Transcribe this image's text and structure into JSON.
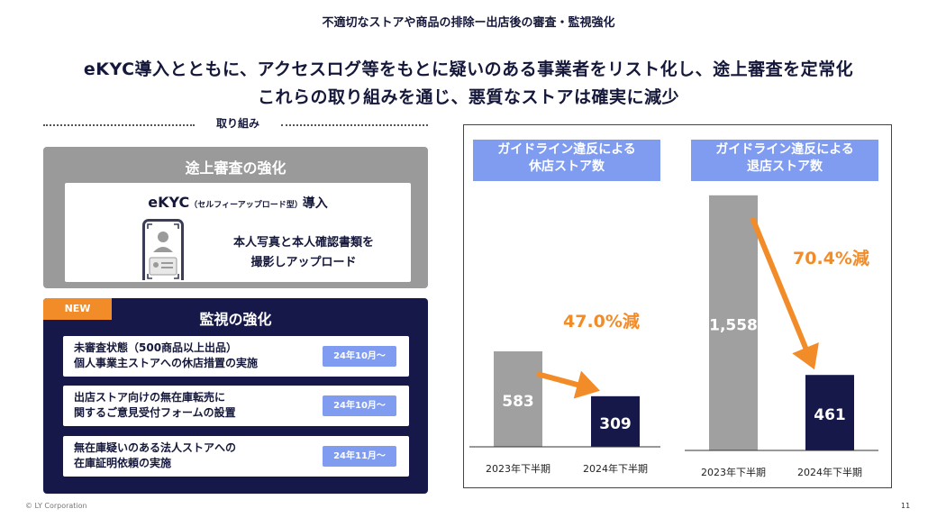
{
  "page": {
    "title": "不適切なストアや商品の排除ー出店後の審査・監視強化",
    "headline_1": "eKYC導入とともに、アクセスログ等をもとに疑いのある事業者をリスト化し、途上審査を定常化",
    "headline_2": "これらの取り組みを通じ、悪質なストアは確実に減少",
    "section_label": "取り組み",
    "footer": "© LY Corporation",
    "page_number": "11"
  },
  "panel_review": {
    "title": "途上審査の強化",
    "ekyc_main": "eKYC",
    "ekyc_note": "（セルフィーアップロード型）",
    "ekyc_suffix": "導入",
    "photo_line1": "本人写真と本人確認書類を",
    "photo_line2": "撮影しアップロード"
  },
  "panel_monitor": {
    "badge": "NEW",
    "title": "監視の強化",
    "items": [
      {
        "line1": "未審査状態（500商品以上出品）",
        "line2": "個人事業主ストアへの休店措置の実施",
        "date": "24年10月〜"
      },
      {
        "line1": "出店ストア向けの無在庫転売に",
        "line2": "関するご意見受付フォームの設置",
        "date": "24年10月〜"
      },
      {
        "line1": "無在庫疑いのある法人ストアへの",
        "line2": "在庫証明依頼の実施",
        "date": "24年11月〜"
      }
    ]
  },
  "colors": {
    "navy": "#16184a",
    "gray_bar": "#a0a0a0",
    "accent_orange": "#f28c28",
    "title_blue": "#7f9cf0"
  },
  "chart_data": [
    {
      "type": "bar",
      "title_line1": "ガイドライン違反による",
      "title_line2": "休店ストア数",
      "categories": [
        "2023年下半期",
        "2024年下半期"
      ],
      "values": [
        583,
        309
      ],
      "value_labels": [
        "583",
        "309"
      ],
      "change_label": "47.0%減",
      "ylim": [
        0,
        1700
      ],
      "grid": false,
      "legend": "none"
    },
    {
      "type": "bar",
      "title_line1": "ガイドライン違反による",
      "title_line2": "退店ストア数",
      "categories": [
        "2023年下半期",
        "2024年下半期"
      ],
      "values": [
        1558,
        461
      ],
      "value_labels": [
        "1,558",
        "461"
      ],
      "change_label": "70.4%減",
      "ylim": [
        0,
        1700
      ],
      "grid": false,
      "legend": "none"
    }
  ]
}
